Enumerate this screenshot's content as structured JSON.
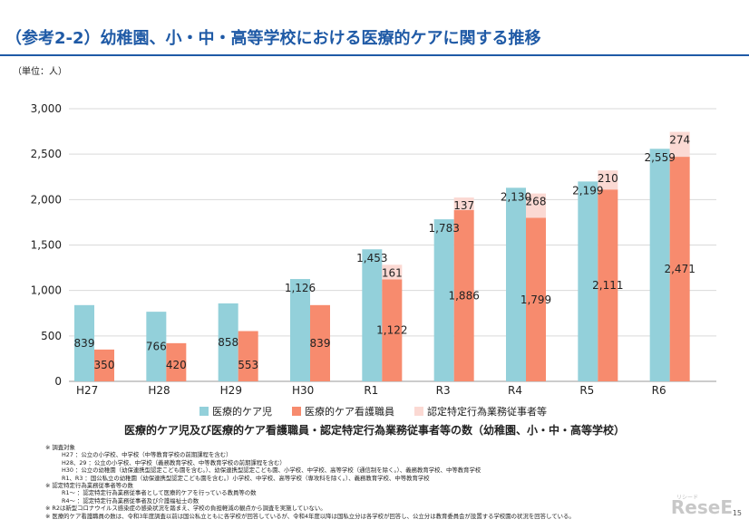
{
  "title": "（参考2-2）幼稚園、小・中・高等学校における医療的ケアに関する推移",
  "unit_label": "（単位：人）",
  "caption": "医療的ケア児及び医療的ケア看護職員・認定特定行為業務従事者等の数（幼稚園、小・中・高等学校）",
  "notes": [
    {
      "text": "※  調査対象",
      "indent": false
    },
    {
      "text": "H27          ：公立の小学校、中学校（中等教育学校の前期課程を含む）",
      "indent": true
    },
    {
      "text": "H28、29 ：公立の小学校、中学校（義務教育学校、中等教育学校の前期課程を含む）",
      "indent": true
    },
    {
      "text": "H30          ：公立の幼稚園（幼保連携型認定こども園を含む。）、幼保連携型認定こども園、小学校、中学校、高等学校（通信制を除く。）、義務教育学校、中等教育学校",
      "indent": true
    },
    {
      "text": "R1、R3   ：国公私立の幼稚園（幼保連携型認定こども園を含む。）小学校、中学校、高等学校（専攻科を除く。）、義務教育学校、中等教育学校",
      "indent": true
    },
    {
      "text": "※  認定特定行為業務従事者等の数",
      "indent": false
    },
    {
      "text": "R1～      ：認定特定行為業務従事者として医療的ケアを行っている教員等の数",
      "indent": true
    },
    {
      "text": "R4～      ：認定特定行為業務従事者及び介護福祉士の数",
      "indent": true
    },
    {
      "text": "※  R2は新型コロナウイルス感染症の感染状況を踏まえ、学校の負担軽減の観点から調査を実施していない。",
      "indent": false
    },
    {
      "text": "※  医療的ケア看護職員の数は、令和3年度調査以前は国公私立ともに各学校が回答しているが、令和4年度以降は国私立分は各学校が回答し、公立分は教育委員会が設置する学校園の状況を回答している。",
      "indent": false
    }
  ],
  "page_number": "15",
  "watermark": "ReseE",
  "watermark_sub": "リシード",
  "chart_data": {
    "type": "bar",
    "categories": [
      "H27",
      "H28",
      "H29",
      "H30",
      "R1",
      "R3",
      "R4",
      "R5",
      "R6"
    ],
    "series": [
      {
        "name": "医療的ケア児",
        "color": "#93d0da",
        "values": [
          839,
          766,
          858,
          1126,
          1453,
          1783,
          2130,
          2199,
          2559
        ]
      },
      {
        "name": "医療的ケア看護職員",
        "color": "#f78b6e",
        "values": [
          350,
          420,
          553,
          839,
          1122,
          1886,
          1799,
          2111,
          2471
        ]
      },
      {
        "name": "認定特定行為業務従事者等",
        "color": "#fbd9d3",
        "values": [
          null,
          null,
          null,
          null,
          161,
          137,
          268,
          210,
          274
        ]
      }
    ],
    "data_labels": {
      "child": [
        "839",
        "766",
        "858",
        "1,126",
        "1,453",
        "1,783",
        "2,130",
        "2,199",
        "2,559"
      ],
      "nurse": [
        "350",
        "420",
        "553",
        "839",
        "1,122",
        "1,886",
        "1,799",
        "2,111",
        "2,471"
      ],
      "certified": [
        "",
        "",
        "",
        "",
        "161",
        "137",
        "268",
        "210",
        "274"
      ]
    },
    "stacked_series": [
      "医療的ケア看護職員",
      "認定特定行為業務従事者等"
    ],
    "ylim": [
      0,
      3000
    ],
    "yticks": [
      0,
      500,
      1000,
      1500,
      2000,
      2500,
      3000
    ],
    "ytick_labels": [
      "0",
      "500",
      "1,000",
      "1,500",
      "2,000",
      "2,500",
      "3,000"
    ],
    "grid": true,
    "legend_position": "bottom"
  }
}
